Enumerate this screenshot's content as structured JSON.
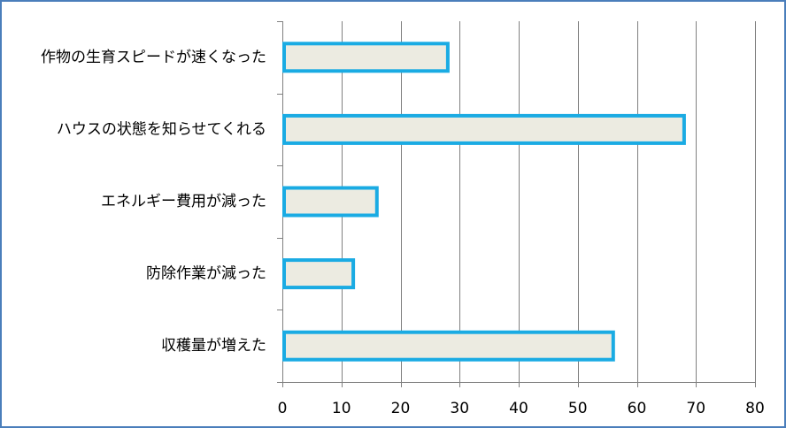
{
  "chart_data": {
    "type": "bar",
    "orientation": "horizontal",
    "categories": [
      "作物の生育スピードが速くなった",
      "ハウスの状態を知らせてくれる",
      "エネルギー費用が減った",
      "防除作業が減った",
      "収穫量が増えた"
    ],
    "values": [
      28,
      68,
      16,
      12,
      56
    ],
    "xlim": [
      0,
      80
    ],
    "xticks": [
      0,
      10,
      20,
      30,
      40,
      50,
      60,
      70,
      80
    ],
    "grid": true,
    "colors": {
      "bar_fill": "#ecebe1",
      "bar_stroke": "#1aabe3",
      "grid": "#808080",
      "frame": "#4a7ebb"
    }
  }
}
